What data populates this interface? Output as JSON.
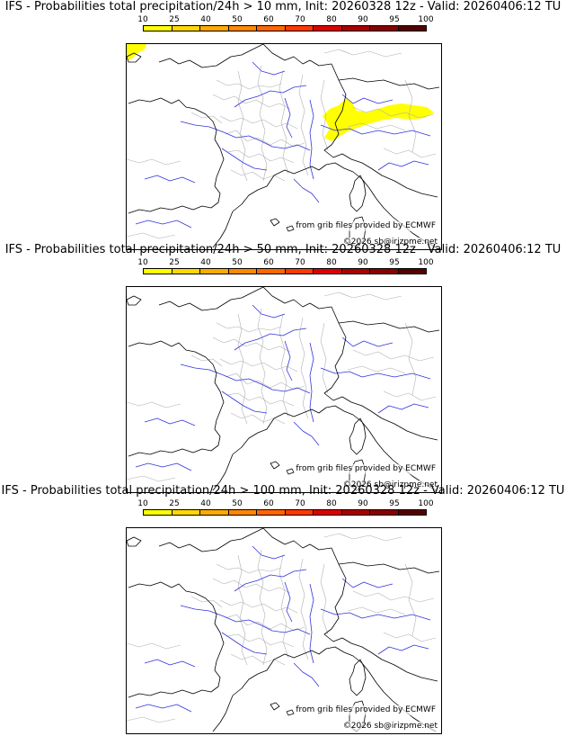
{
  "colors": {
    "scale": [
      "#ffff00",
      "#ffd800",
      "#ffaa00",
      "#ff8800",
      "#ff6600",
      "#ff3a00",
      "#dd0000",
      "#aa0000",
      "#880000",
      "#550000"
    ],
    "coast": "#000000",
    "rivers": "#3333dd",
    "admin": "#b0b0b0",
    "probability_fill": "#ffff00"
  },
  "colorbar_ticks": [
    "10",
    "25",
    "40",
    "50",
    "60",
    "70",
    "80",
    "90",
    "95",
    "100"
  ],
  "credits": {
    "source": "from grib files provided by ECMWF",
    "copyright": "©2026 sb@irizpme.net"
  },
  "panels": [
    {
      "title": "IFS - Probabilities total precipitation/24h > 10 mm, Init: 20260328 12z - Valid: 20260406:12 TU",
      "has_probability_area": true
    },
    {
      "title": "IFS - Probabilities total precipitation/24h > 50 mm, Init: 20260328 12z - Valid: 20260406:12 TU",
      "has_probability_area": false
    },
    {
      "title": "IFS - Probabilities total precipitation/24h > 100 mm, Init: 20260328 12z - Valid: 20260406:12 TU",
      "has_probability_area": false
    }
  ]
}
